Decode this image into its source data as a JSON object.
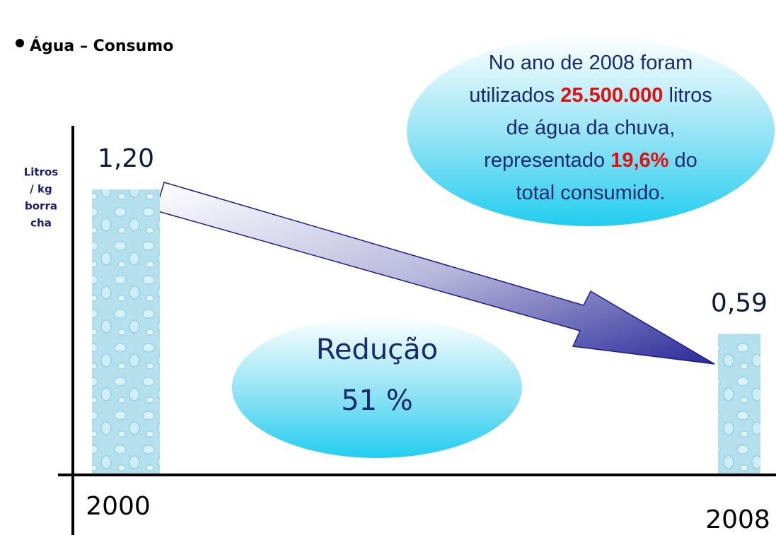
{
  "chart_data": {
    "type": "bar",
    "title": "Água – Consumo",
    "y_label": [
      "Litros",
      "/ kg",
      "borra",
      "cha"
    ],
    "categories": [
      "2000",
      "2008"
    ],
    "values": [
      1.2,
      0.59
    ],
    "value_labels": [
      "1,20",
      "0,59"
    ],
    "color": "#a8dbe8",
    "callout": [
      [
        {
          "text": "No ano de 2008 foram"
        }
      ],
      [
        {
          "text": "utilizados"
        },
        {
          "text": "25.500.000",
          "color": "#e01010"
        },
        {
          "text": "litros"
        }
      ],
      [
        {
          "text": "de água da chuva,"
        }
      ],
      [
        {
          "text": "representado"
        },
        {
          "text": "19,6%",
          "color": "#e01010"
        },
        {
          "text": "do"
        }
      ],
      [
        {
          "text": "total consumido."
        }
      ]
    ],
    "reduction": [
      "Redução",
      "51 %"
    ]
  }
}
